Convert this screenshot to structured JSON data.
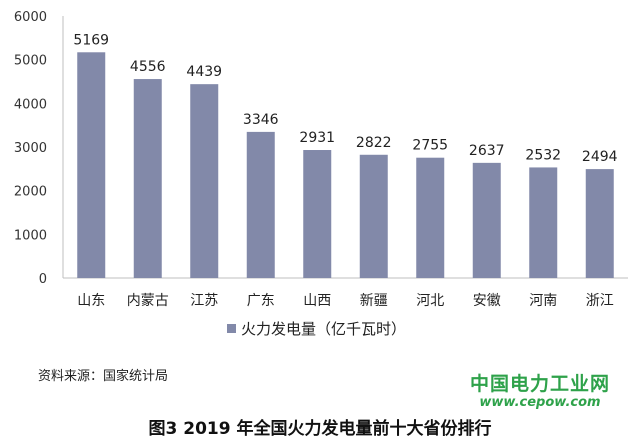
{
  "chart_data": {
    "type": "bar",
    "categories": [
      "山东",
      "内蒙古",
      "江苏",
      "广东",
      "山西",
      "新疆",
      "河北",
      "安徽",
      "河南",
      "浙江"
    ],
    "series": [
      {
        "name": "火力发电量（亿千瓦时）",
        "values": [
          5169,
          4556,
          4439,
          3346,
          2931,
          2822,
          2755,
          2637,
          2532,
          2494
        ]
      }
    ],
    "ylim": [
      0,
      6000
    ],
    "yticks": [
      0,
      1000,
      2000,
      3000,
      4000,
      5000,
      6000
    ],
    "grid": false,
    "legend_position": "bottom",
    "bar_color": "#8289a9"
  },
  "source_text": "资料来源：国家统计局",
  "watermark": {
    "name": "中国电力工业网",
    "url": "www.cepow.com"
  },
  "caption": "图3 2019 年全国火力发电量前十大省份排行"
}
